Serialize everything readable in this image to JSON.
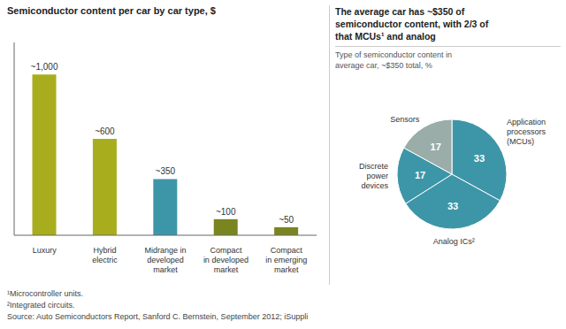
{
  "chart_data": [
    {
      "type": "bar",
      "title": "Semiconductor content per car by car type, $",
      "categories": [
        "Luxury",
        "Hybrid\nelectric",
        "Midrange in\ndeveloped\nmarket",
        "Compact\nin developed\nmarket",
        "Compact\nin emerging\nmarket"
      ],
      "values": [
        1000,
        600,
        350,
        100,
        50
      ],
      "value_labels": [
        "~1,000",
        "~600",
        "~350",
        "~100",
        "~50"
      ],
      "colors": [
        "#a8ad1e",
        "#a8ad1e",
        "#3d96a8",
        "#7a8520",
        "#7a8520"
      ],
      "ylim": [
        0,
        1200
      ],
      "data_labels": true,
      "tick_labels": "x",
      "annotations": [
        "¹Microcontroller units.",
        "²Integrated circuits.",
        "Source: Auto Semiconductors Report, Sanford C. Bernstein, September 2012; iSuppli"
      ]
    },
    {
      "type": "pie",
      "title": "The average car has ~$350 of\nsemiconductor content, with 2/3 of\nthat MCUs¹ and analog",
      "subtitle": "Type of semiconductor content in\naverage car, ~$350 total, %",
      "categories": [
        "Application\nprocessors\n(MCUs)",
        "Analog ICs²",
        "Discrete\npower\ndevices",
        "Sensors"
      ],
      "values": [
        33,
        33,
        17,
        17
      ],
      "colors": [
        "#3d96a8",
        "#3d96a8",
        "#3d96a8",
        "#9aada8"
      ],
      "data_labels": true
    }
  ]
}
